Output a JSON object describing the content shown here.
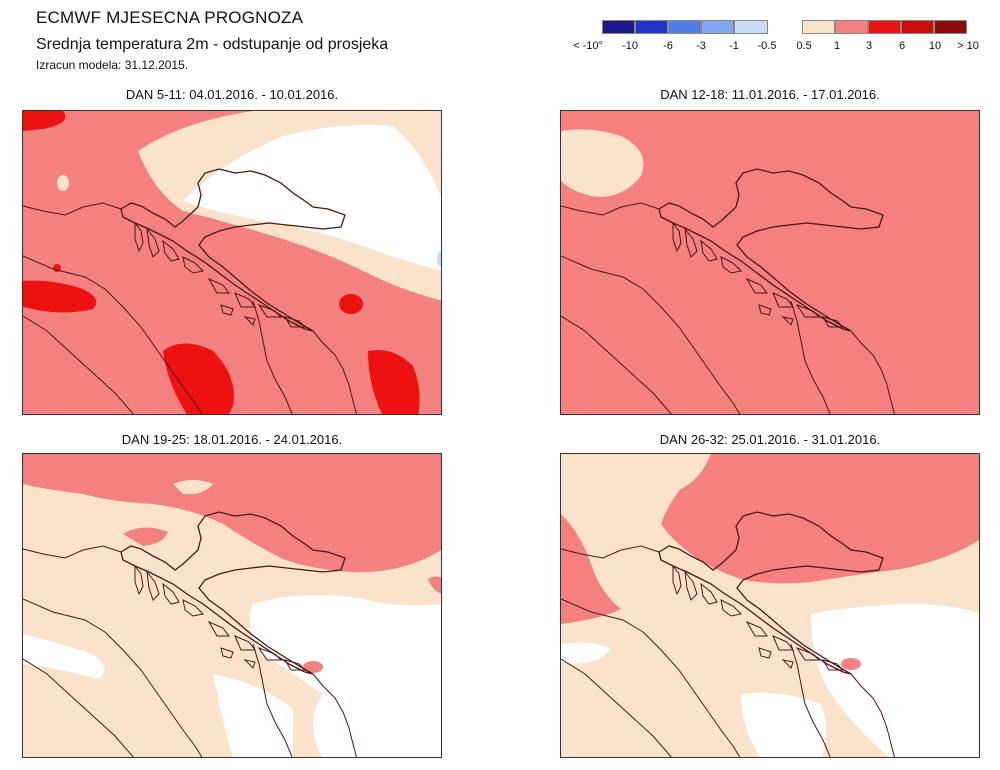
{
  "header": {
    "title": "ECMWF MJESECNA PROGNOZA",
    "subtitle": "Srednja temperatura 2m - odstupanje od prosjeka",
    "model_run": "Izracun modela: 31.12.2015."
  },
  "legend": {
    "swatches": [
      {
        "color": "#1a1a8c"
      },
      {
        "color": "#2233cc"
      },
      {
        "color": "#4d7fe6"
      },
      {
        "color": "#7fa8f0"
      },
      {
        "color": "#c8dcf7"
      },
      {
        "color": "#fbe3cb"
      },
      {
        "color": "#f48080"
      },
      {
        "color": "#ee1111"
      },
      {
        "color": "#cc0a0a"
      },
      {
        "color": "#8f0a0a"
      }
    ],
    "ticks": [
      "< -10°",
      "-10",
      "-6",
      "-3",
      "-1",
      "-0.5",
      "0.5",
      "1",
      "3",
      "6",
      "10",
      "> 10"
    ]
  },
  "panels": [
    {
      "title": "DAN 5-11: 04.01.2016. - 10.01.2016."
    },
    {
      "title": "DAN 12-18: 11.01.2016. - 17.01.2016."
    },
    {
      "title": "DAN 19-25: 18.01.2016. - 24.01.2016."
    },
    {
      "title": "DAN 26-32: 25.01.2016. - 31.01.2016."
    }
  ],
  "colors": {
    "light_anomaly": "#fbe3cb",
    "medium_anomaly": "#f48080",
    "strong_anomaly": "#ee1111",
    "dark_anomaly": "#8f0a0a",
    "blue_light": "#c8dcf7",
    "border": "#4a1616"
  }
}
